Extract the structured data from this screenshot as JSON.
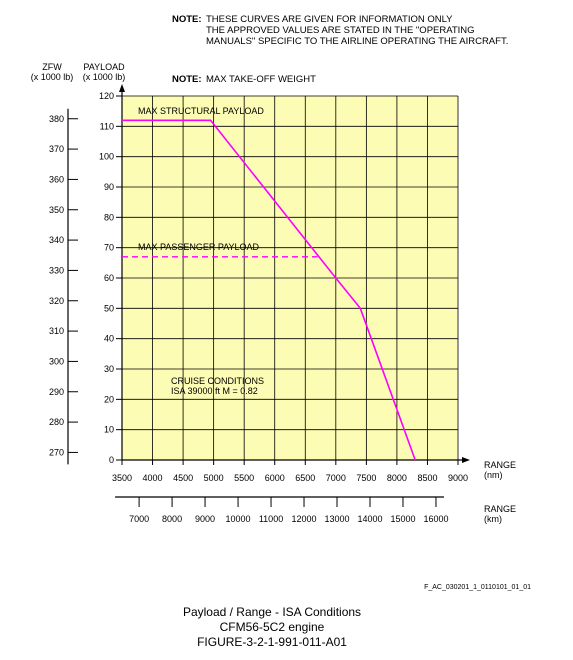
{
  "notes": {
    "note1_label": "NOTE:",
    "note1_lines": [
      "THESE CURVES ARE GIVEN FOR INFORMATION ONLY",
      "THE APPROVED VALUES ARE STATED IN THE \"OPERATING",
      "MANUALS\" SPECIFIC TO THE AIRLINE OPERATING THE AIRCRAFT."
    ],
    "note2_label": "NOTE:",
    "note2_text": "MAX TAKE-OFF WEIGHT"
  },
  "axis_titles": {
    "zfw_line1": "ZFW",
    "zfw_line2": "(x 1000 lb)",
    "payload_line1": "PAYLOAD",
    "payload_line2": "(x 1000 lb)",
    "range_nm_line1": "RANGE",
    "range_nm_line2": "(nm)",
    "range_km_line1": "RANGE",
    "range_km_line2": "(km)"
  },
  "annotations": {
    "max_structural": "MAX STRUCTURAL PAYLOAD",
    "max_passenger": "MAX PASSENGER PAYLOAD",
    "cruise_line1": "CRUISE CONDITIONS",
    "cruise_line2": "ISA 39000 ft   M = 0.82"
  },
  "reference_code": "F_AC_030201_1_0110101_01_01",
  "caption": {
    "line1": "Payload / Range - ISA Conditions",
    "line2": "CFM56-5C2 engine",
    "line3": "FIGURE-3-2-1-991-011-A01"
  },
  "colors": {
    "plot_background": "#fcfcb4",
    "grid": "#000000",
    "curve": "#ff00ff"
  },
  "chart_data": {
    "type": "line",
    "x_axis_nm": {
      "ticks": [
        3500,
        4000,
        4500,
        5000,
        5500,
        6000,
        6500,
        7000,
        7500,
        8000,
        8500,
        9000
      ],
      "range": [
        3500,
        9000
      ]
    },
    "x_axis_km": {
      "ticks": [
        7000,
        8000,
        9000,
        10000,
        11000,
        12000,
        13000,
        14000,
        15000,
        16000
      ]
    },
    "y_axis_payload": {
      "ticks": [
        0,
        10,
        20,
        30,
        40,
        50,
        60,
        70,
        80,
        90,
        100,
        110,
        120
      ],
      "range": [
        0,
        120
      ]
    },
    "y_axis_zfw": {
      "ticks": [
        270,
        280,
        290,
        300,
        310,
        320,
        330,
        340,
        350,
        360,
        370,
        380
      ]
    },
    "series": [
      {
        "x": [
          3500,
          4950,
          7000,
          7400,
          8300
        ],
        "y": [
          112,
          112,
          60,
          50,
          0
        ]
      }
    ],
    "reference_lines": [
      {
        "x": [
          3500,
          6700
        ],
        "y": [
          67,
          67
        ],
        "style": "dashed"
      }
    ],
    "grid": true
  }
}
